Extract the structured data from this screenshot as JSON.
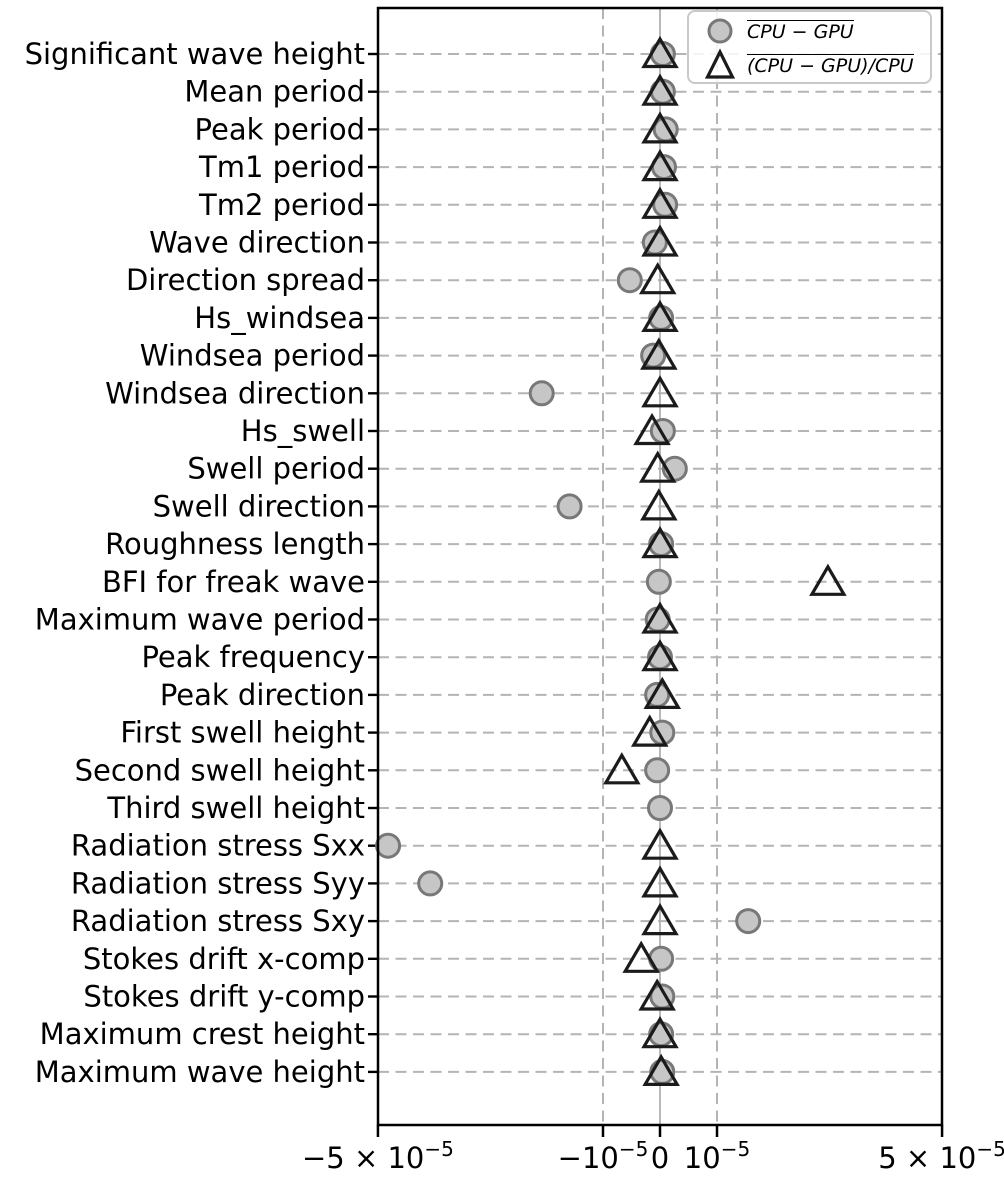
{
  "figure": {
    "background": "#ffffff"
  },
  "legend": {
    "entries": [
      {
        "marker": "circle",
        "label": "CPU − GPU"
      },
      {
        "marker": "triangle",
        "label": "(CPU − GPU)/CPU"
      }
    ]
  },
  "colors": {
    "circle_fill": "#c6c6c6",
    "circle_edge": "#787878",
    "triangle_edge": "#1b1b1b",
    "grid": "#b4b4b4",
    "zero_line": "#b0b0b0",
    "axis": "#000000",
    "legend_border": "#c9c9c9"
  },
  "chart_data": {
    "type": "scatter",
    "orientation": "horizontal",
    "x_scale": "symlog",
    "x_linthresh": 1e-05,
    "xlim": [
      -5e-05,
      5e-05
    ],
    "grid": "dashed, horizontal per category and vertical at ±1e-5, solid line at 0",
    "legend_position": "upper right",
    "x_ticks": [
      {
        "value": -5e-05,
        "base": "−5 × 10",
        "exp": "−5"
      },
      {
        "value": -1e-05,
        "base": "−10",
        "exp": "−5"
      },
      {
        "value": 0,
        "base": "0",
        "exp": ""
      },
      {
        "value": 1e-05,
        "base": "10",
        "exp": "−5"
      },
      {
        "value": 5e-05,
        "base": "5 × 10",
        "exp": "−5"
      }
    ],
    "categories": [
      "Significant wave height",
      "Mean period",
      "Peak period",
      "Tm1 period",
      "Tm2 period",
      "Wave direction",
      "Direction spread",
      "Hs_windsea",
      "Windsea period",
      "Windsea direction",
      "Hs_swell",
      "Swell period",
      "Swell direction",
      "Roughness length",
      "BFI for freak wave",
      "Maximum wave period",
      "Peak frequency",
      "Peak direction",
      "First swell height",
      "Second swell height",
      "Third swell height",
      "Radiation stress Sxx",
      "Radiation stress Syy",
      "Radiation stress Sxy",
      "Stokes drift x-comp",
      "Stokes drift y-comp",
      "Maximum crest height",
      "Maximum wave height"
    ],
    "series": [
      {
        "name": "CPU − GPU",
        "marker": "circle",
        "values": [
          5e-07,
          5e-07,
          1e-06,
          7e-07,
          9e-07,
          -9e-07,
          -5.3e-06,
          2e-07,
          -1.2e-06,
          -1.55e-05,
          5e-07,
          2.6e-06,
          -1.27e-05,
          2e-07,
          -2e-07,
          -4e-07,
          0,
          -5e-07,
          4e-07,
          -5e-07,
          0,
          -4.65e-05,
          -3.44e-05,
          1.25e-05,
          2e-07,
          4e-07,
          2e-07,
          4e-07
        ]
      },
      {
        "name": "(CPU − GPU)/CPU",
        "marker": "triangle",
        "values": [
          0,
          0,
          0,
          0,
          0,
          0,
          -4e-07,
          0,
          -2e-07,
          0,
          -1.4e-06,
          -4e-07,
          -2e-07,
          0,
          2.21e-05,
          0,
          0,
          4e-07,
          -1.8e-06,
          -6.7e-06,
          null,
          0,
          0,
          0,
          -3.3e-06,
          -5e-07,
          0,
          2e-07
        ]
      }
    ]
  }
}
